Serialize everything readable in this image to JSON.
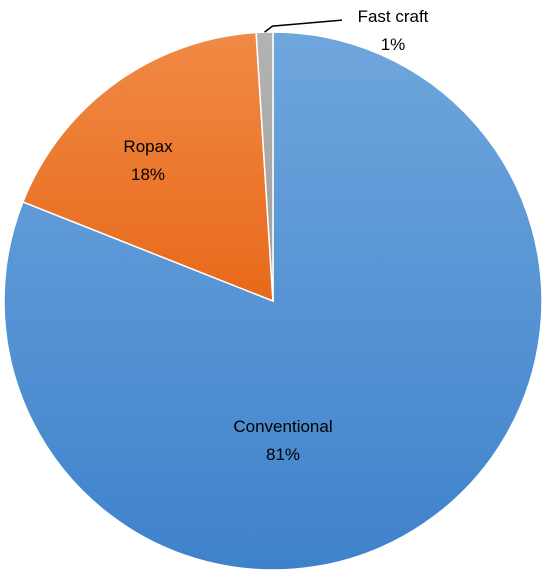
{
  "chart_data": {
    "type": "pie",
    "title": "",
    "start": "top",
    "direction": "clockwise",
    "slices": [
      {
        "label": "Conventional",
        "value": 81,
        "value_label": "81%",
        "color_top": "#6FA6DC",
        "color_bottom": "#3E82CC"
      },
      {
        "label": "Ropax",
        "value": 18,
        "value_label": "18%",
        "color_top": "#F08A45",
        "color_bottom": "#E8691A"
      },
      {
        "label": "Fast craft",
        "value": 1,
        "value_label": "1%",
        "color_top": "#B3B3B3",
        "color_bottom": "#9E9E9E"
      }
    ]
  }
}
